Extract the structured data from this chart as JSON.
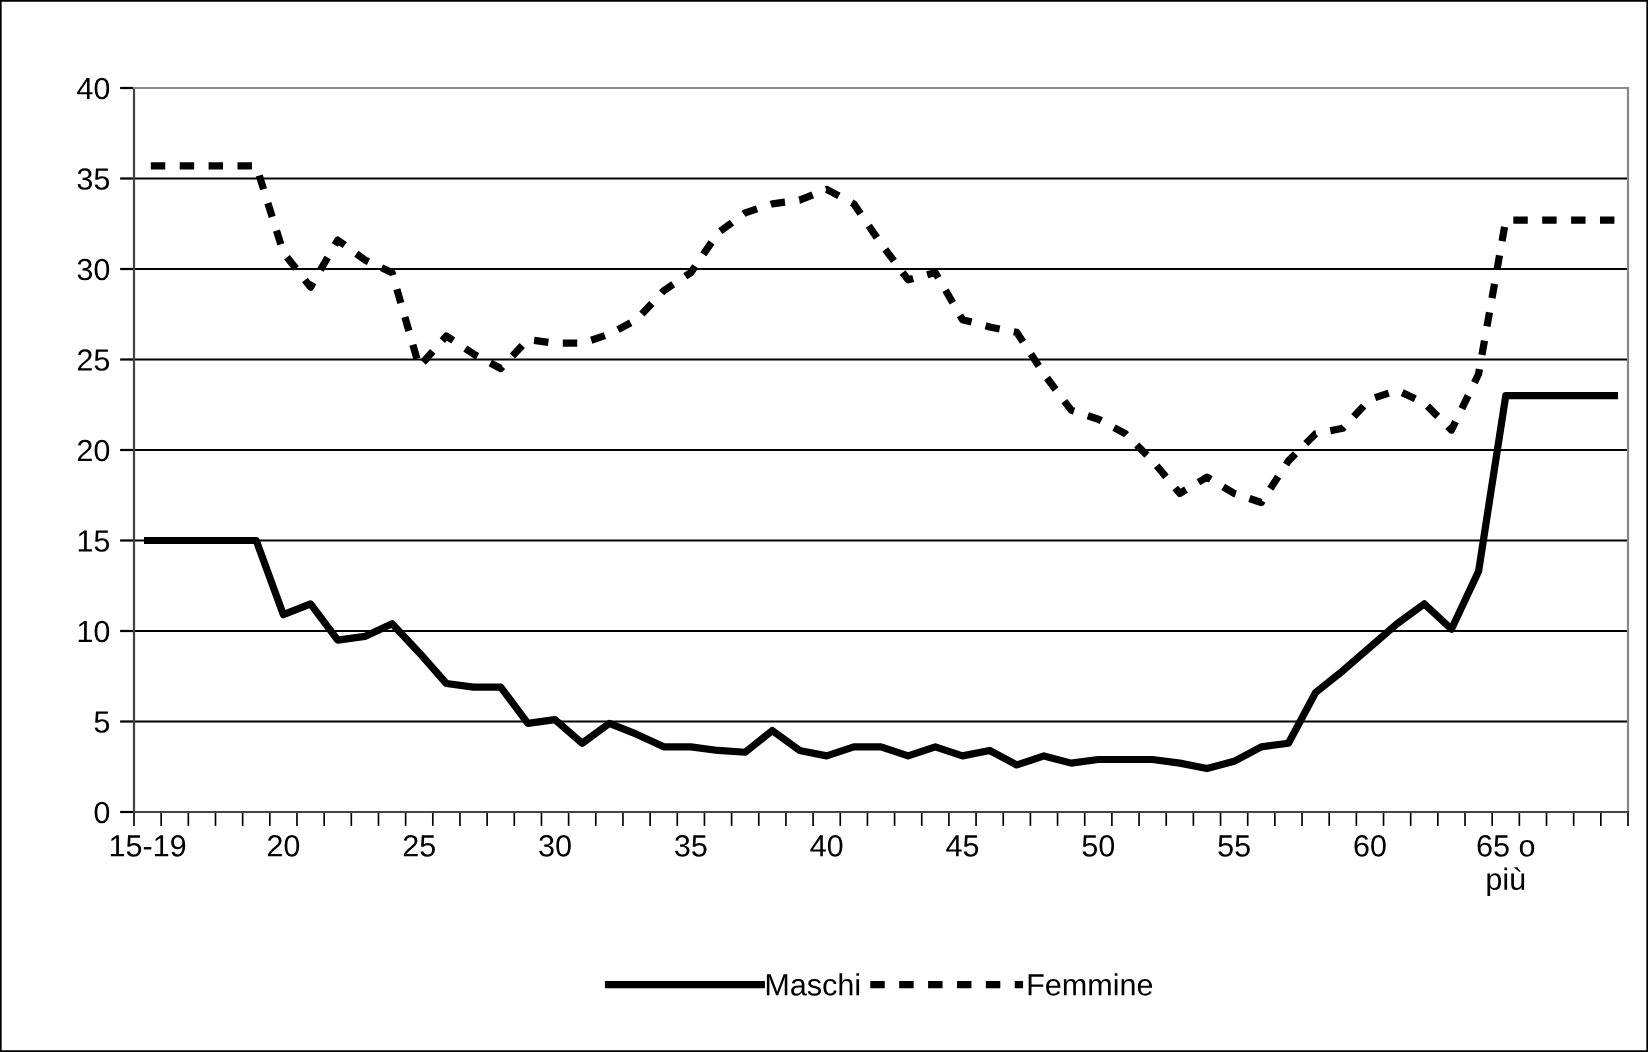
{
  "chart_data": {
    "type": "line",
    "categories": [
      "15-19",
      null,
      null,
      null,
      null,
      "20",
      null,
      null,
      null,
      null,
      "25",
      null,
      null,
      null,
      null,
      "30",
      null,
      null,
      null,
      null,
      "35",
      null,
      null,
      null,
      null,
      "40",
      null,
      null,
      null,
      null,
      "45",
      null,
      null,
      null,
      null,
      "50",
      null,
      null,
      null,
      null,
      "55",
      null,
      null,
      null,
      null,
      "60",
      null,
      null,
      null,
      null,
      "65 o\npiù",
      null,
      null,
      null,
      null
    ],
    "series": [
      {
        "name": "Maschi",
        "color": "#000000",
        "line_style": "solid",
        "values": [
          15,
          15,
          15,
          15,
          15,
          10.9,
          11.5,
          9.5,
          9.7,
          10.4,
          8.8,
          7.1,
          6.9,
          6.9,
          4.9,
          5.1,
          3.8,
          4.9,
          4.3,
          3.6,
          3.6,
          3.4,
          3.3,
          4.5,
          3.4,
          3.1,
          3.6,
          3.6,
          3.1,
          3.6,
          3.1,
          3.4,
          2.6,
          3.1,
          2.7,
          2.9,
          2.9,
          2.9,
          2.7,
          2.4,
          2.8,
          3.6,
          3.8,
          6.6,
          7.8,
          9.1,
          10.4,
          11.5,
          10.1,
          13.3,
          23,
          23,
          23,
          23,
          23
        ]
      },
      {
        "name": "Femmine",
        "color": "#000000",
        "line_style": "dashed",
        "values": [
          35.7,
          35.7,
          35.7,
          35.7,
          35.7,
          30.9,
          29,
          31.6,
          30.5,
          29.8,
          24.6,
          26.3,
          25.3,
          24.5,
          26.1,
          25.9,
          25.9,
          26.4,
          27.2,
          28.8,
          29.8,
          32,
          33.1,
          33.6,
          33.8,
          34.4,
          33.6,
          31.4,
          29.4,
          29.8,
          27.2,
          26.8,
          26.5,
          24.2,
          22.2,
          21.7,
          20.9,
          19.4,
          17.6,
          18.5,
          17.6,
          17.1,
          19.4,
          20.9,
          21.2,
          22.8,
          23.3,
          22.6,
          21.1,
          24.2,
          32.7,
          32.7,
          32.7,
          32.7,
          32.7
        ]
      }
    ],
    "ylim": [
      0,
      40
    ],
    "yticks": [
      0,
      5,
      10,
      15,
      20,
      25,
      30,
      35,
      40
    ],
    "grid": "y",
    "legend": "bottom",
    "marker": "none"
  }
}
